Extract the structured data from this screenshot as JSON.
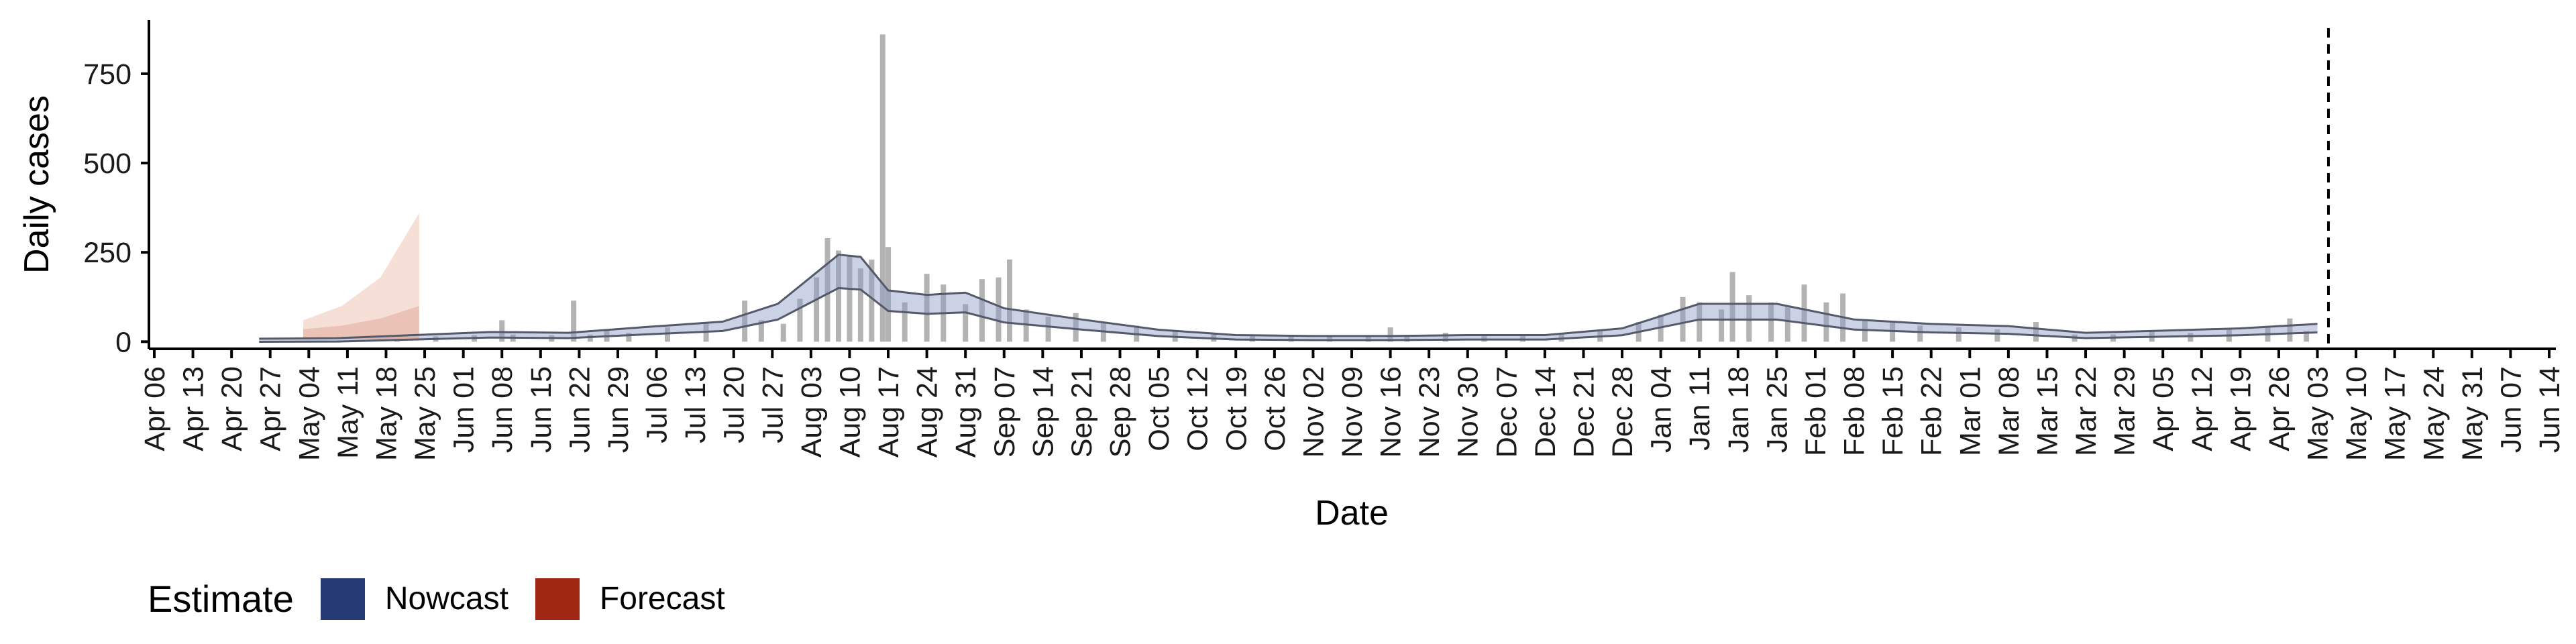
{
  "chart_data": {
    "type": "bar",
    "xlabel": "Date",
    "ylabel": "Daily cases",
    "ylim": [
      -20,
      900
    ],
    "yticks": [
      0,
      250,
      500,
      750
    ],
    "xticks": [
      "Apr 06",
      "Apr 13",
      "Apr 20",
      "Apr 27",
      "May 04",
      "May 11",
      "May 18",
      "May 25",
      "Jun 01",
      "Jun 08",
      "Jun 15",
      "Jun 22",
      "Jun 29",
      "Jul 06",
      "Jul 13",
      "Jul 20",
      "Jul 27",
      "Aug 03",
      "Aug 10",
      "Aug 17",
      "Aug 24",
      "Aug 31",
      "Sep 07",
      "Sep 14",
      "Sep 21",
      "Sep 28",
      "Oct 05",
      "Oct 12",
      "Oct 19",
      "Oct 26",
      "Nov 02",
      "Nov 09",
      "Nov 16",
      "Nov 23",
      "Nov 30",
      "Dec 07",
      "Dec 14",
      "Dec 21",
      "Dec 28",
      "Jan 04",
      "Jan 11",
      "Jan 18",
      "Jan 25",
      "Feb 01",
      "Feb 08",
      "Feb 15",
      "Feb 22",
      "Mar 01",
      "Mar 08",
      "Mar 15",
      "Mar 22",
      "Mar 29",
      "Apr 05",
      "Apr 12",
      "Apr 19",
      "Apr 26",
      "May 03",
      "May 10",
      "May 17",
      "May 24",
      "May 31",
      "Jun 07",
      "Jun 14"
    ],
    "vline_date": "May 05",
    "grid": false,
    "legend": {
      "title": "Estimate",
      "position": "bottom-left",
      "items": [
        {
          "label": "Nowcast",
          "color": "#263a75"
        },
        {
          "label": "Forecast",
          "color": "#a02812"
        }
      ]
    },
    "cases": [
      {
        "x": "Apr 29",
        "y": 2
      },
      {
        "x": "May 06",
        "y": 3
      },
      {
        "x": "May 13",
        "y": 4
      },
      {
        "x": "May 20",
        "y": 8
      },
      {
        "x": "May 27",
        "y": 15
      },
      {
        "x": "Jun 03",
        "y": 18
      },
      {
        "x": "Jun 08",
        "y": 60
      },
      {
        "x": "Jun 10",
        "y": 20
      },
      {
        "x": "Jun 17",
        "y": 18
      },
      {
        "x": "Jun 21",
        "y": 115
      },
      {
        "x": "Jun 24",
        "y": 20
      },
      {
        "x": "Jun 27",
        "y": 35
      },
      {
        "x": "Jul 01",
        "y": 25
      },
      {
        "x": "Jul 08",
        "y": 40
      },
      {
        "x": "Jul 15",
        "y": 55
      },
      {
        "x": "Jul 22",
        "y": 115
      },
      {
        "x": "Jul 25",
        "y": 60
      },
      {
        "x": "Jul 29",
        "y": 50
      },
      {
        "x": "Aug 01",
        "y": 120
      },
      {
        "x": "Aug 04",
        "y": 180
      },
      {
        "x": "Aug 06",
        "y": 290
      },
      {
        "x": "Aug 08",
        "y": 255
      },
      {
        "x": "Aug 10",
        "y": 240
      },
      {
        "x": "Aug 12",
        "y": 205
      },
      {
        "x": "Aug 14",
        "y": 230
      },
      {
        "x": "Aug 16",
        "y": 860
      },
      {
        "x": "Aug 17",
        "y": 265
      },
      {
        "x": "Aug 20",
        "y": 110
      },
      {
        "x": "Aug 24",
        "y": 190
      },
      {
        "x": "Aug 27",
        "y": 160
      },
      {
        "x": "Aug 31",
        "y": 105
      },
      {
        "x": "Sep 03",
        "y": 175
      },
      {
        "x": "Sep 06",
        "y": 180
      },
      {
        "x": "Sep 08",
        "y": 230
      },
      {
        "x": "Sep 11",
        "y": 90
      },
      {
        "x": "Sep 15",
        "y": 70
      },
      {
        "x": "Sep 20",
        "y": 80
      },
      {
        "x": "Sep 25",
        "y": 55
      },
      {
        "x": "Oct 01",
        "y": 45
      },
      {
        "x": "Oct 08",
        "y": 30
      },
      {
        "x": "Oct 15",
        "y": 22
      },
      {
        "x": "Oct 22",
        "y": 18
      },
      {
        "x": "Oct 29",
        "y": 15
      },
      {
        "x": "Nov 05",
        "y": 15
      },
      {
        "x": "Nov 12",
        "y": 14
      },
      {
        "x": "Nov 16",
        "y": 40
      },
      {
        "x": "Nov 19",
        "y": 15
      },
      {
        "x": "Nov 26",
        "y": 25
      },
      {
        "x": "Dec 03",
        "y": 20
      },
      {
        "x": "Dec 10",
        "y": 18
      },
      {
        "x": "Dec 17",
        "y": 22
      },
      {
        "x": "Dec 24",
        "y": 30
      },
      {
        "x": "Dec 31",
        "y": 55
      },
      {
        "x": "Jan 04",
        "y": 75
      },
      {
        "x": "Jan 08",
        "y": 125
      },
      {
        "x": "Jan 11",
        "y": 110
      },
      {
        "x": "Jan 15",
        "y": 90
      },
      {
        "x": "Jan 17",
        "y": 195
      },
      {
        "x": "Jan 20",
        "y": 130
      },
      {
        "x": "Jan 24",
        "y": 110
      },
      {
        "x": "Jan 27",
        "y": 100
      },
      {
        "x": "Jan 30",
        "y": 160
      },
      {
        "x": "Feb 03",
        "y": 110
      },
      {
        "x": "Feb 06",
        "y": 135
      },
      {
        "x": "Feb 10",
        "y": 60
      },
      {
        "x": "Feb 15",
        "y": 55
      },
      {
        "x": "Feb 20",
        "y": 45
      },
      {
        "x": "Feb 27",
        "y": 40
      },
      {
        "x": "Mar 06",
        "y": 35
      },
      {
        "x": "Mar 13",
        "y": 55
      },
      {
        "x": "Mar 20",
        "y": 20
      },
      {
        "x": "Mar 27",
        "y": 20
      },
      {
        "x": "Apr 03",
        "y": 30
      },
      {
        "x": "Apr 10",
        "y": 25
      },
      {
        "x": "Apr 17",
        "y": 35
      },
      {
        "x": "Apr 24",
        "y": 40
      },
      {
        "x": "Apr 28",
        "y": 65
      },
      {
        "x": "May 01",
        "y": 30
      }
    ],
    "nowcast": [
      {
        "x": "Apr 25",
        "y": 2
      },
      {
        "x": "May 09",
        "y": 3
      },
      {
        "x": "May 23",
        "y": 10
      },
      {
        "x": "Jun 06",
        "y": 17
      },
      {
        "x": "Jun 20",
        "y": 15
      },
      {
        "x": "Jul 04",
        "y": 28
      },
      {
        "x": "Jul 18",
        "y": 40
      },
      {
        "x": "Jul 28",
        "y": 80
      },
      {
        "x": "Aug 03",
        "y": 140
      },
      {
        "x": "Aug 08",
        "y": 190
      },
      {
        "x": "Aug 12",
        "y": 185
      },
      {
        "x": "Aug 17",
        "y": 110
      },
      {
        "x": "Aug 24",
        "y": 100
      },
      {
        "x": "Aug 31",
        "y": 105
      },
      {
        "x": "Sep 07",
        "y": 70
      },
      {
        "x": "Sep 21",
        "y": 45
      },
      {
        "x": "Oct 05",
        "y": 22
      },
      {
        "x": "Oct 19",
        "y": 10
      },
      {
        "x": "Nov 02",
        "y": 8
      },
      {
        "x": "Nov 16",
        "y": 8
      },
      {
        "x": "Nov 30",
        "y": 10
      },
      {
        "x": "Dec 14",
        "y": 10
      },
      {
        "x": "Dec 28",
        "y": 25
      },
      {
        "x": "Jan 11",
        "y": 80
      },
      {
        "x": "Jan 25",
        "y": 80
      },
      {
        "x": "Feb 08",
        "y": 45
      },
      {
        "x": "Feb 22",
        "y": 35
      },
      {
        "x": "Mar 08",
        "y": 30
      },
      {
        "x": "Mar 22",
        "y": 15
      },
      {
        "x": "Apr 05",
        "y": 20
      },
      {
        "x": "Apr 19",
        "y": 25
      },
      {
        "x": "May 03",
        "y": 35
      }
    ],
    "forecast": [
      {
        "x": "May 03",
        "y": 35,
        "y_low": 10,
        "y_high": 60
      },
      {
        "x": "May 10",
        "y": 45,
        "y_low": 8,
        "y_high": 100
      },
      {
        "x": "May 17",
        "y": 65,
        "y_low": 6,
        "y_high": 180
      },
      {
        "x": "May 24",
        "y": 100,
        "y_low": 5,
        "y_high": 360
      }
    ]
  }
}
